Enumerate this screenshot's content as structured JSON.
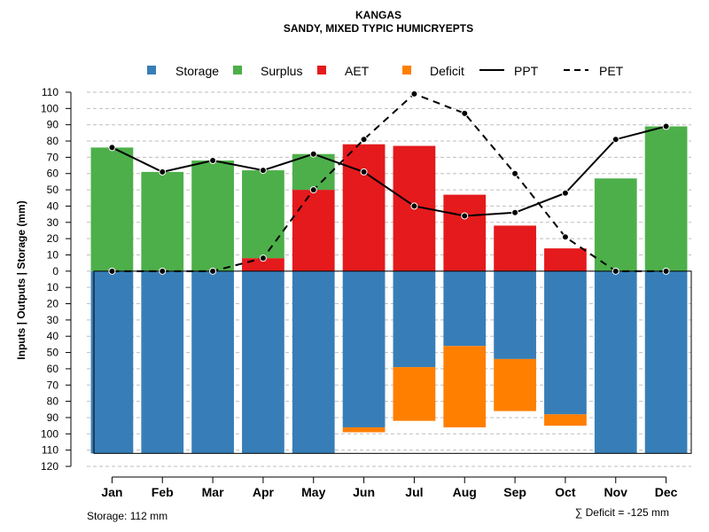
{
  "chart_data": {
    "type": "bar",
    "title": "KANGAS",
    "subtitle": "SANDY, MIXED TYPIC HUMICRYEPTS",
    "ylabel": "Inputs | Outputs | Storage    (mm)",
    "categories": [
      "Jan",
      "Feb",
      "Mar",
      "Apr",
      "May",
      "Jun",
      "Jul",
      "Aug",
      "Sep",
      "Oct",
      "Nov",
      "Dec"
    ],
    "ylim": [
      -120,
      110
    ],
    "yticks": [
      110,
      100,
      90,
      80,
      70,
      60,
      50,
      40,
      30,
      20,
      10,
      0,
      -10,
      -20,
      -30,
      -40,
      -50,
      -60,
      -70,
      -80,
      -90,
      -100,
      -110,
      -120
    ],
    "ytick_labels": [
      "110",
      "100",
      "90",
      "80",
      "70",
      "60",
      "50",
      "40",
      "30",
      "20",
      "10",
      "0",
      "10",
      "20",
      "30",
      "40",
      "50",
      "60",
      "70",
      "80",
      "90",
      "100",
      "110",
      "120"
    ],
    "grid": true,
    "legend": [
      "Storage",
      "Surplus",
      "AET",
      "Deficit",
      "PPT",
      "PET"
    ],
    "colors": {
      "storage": "#377EB8",
      "surplus": "#4DAF4A",
      "aet": "#E41A1C",
      "deficit": "#FF7F00",
      "line": "#000000",
      "grid": "#BEBEBE"
    },
    "series": [
      {
        "name": "AET",
        "values": [
          0,
          0,
          0,
          8,
          50,
          78,
          77,
          47,
          28,
          14,
          0,
          0
        ]
      },
      {
        "name": "Surplus",
        "values": [
          76,
          61,
          68,
          54,
          22,
          0,
          0,
          0,
          0,
          0,
          57,
          89
        ]
      },
      {
        "name": "Storage",
        "values": [
          112,
          112,
          112,
          112,
          112,
          96,
          59,
          46,
          54,
          88,
          112,
          112
        ]
      },
      {
        "name": "Deficit",
        "values": [
          0,
          0,
          0,
          0,
          0,
          3,
          33,
          50,
          32,
          7,
          0,
          0
        ]
      },
      {
        "name": "PPT",
        "values": [
          76,
          61,
          68,
          62,
          72,
          61,
          40,
          34,
          36,
          48,
          81,
          89
        ]
      },
      {
        "name": "PET",
        "values": [
          0,
          0,
          0,
          8,
          50,
          81,
          109,
          97,
          60,
          21,
          0,
          0
        ]
      }
    ],
    "storage_note": "Storage: 112 mm",
    "deficit_note": "∑ Deficit = -125 mm"
  }
}
